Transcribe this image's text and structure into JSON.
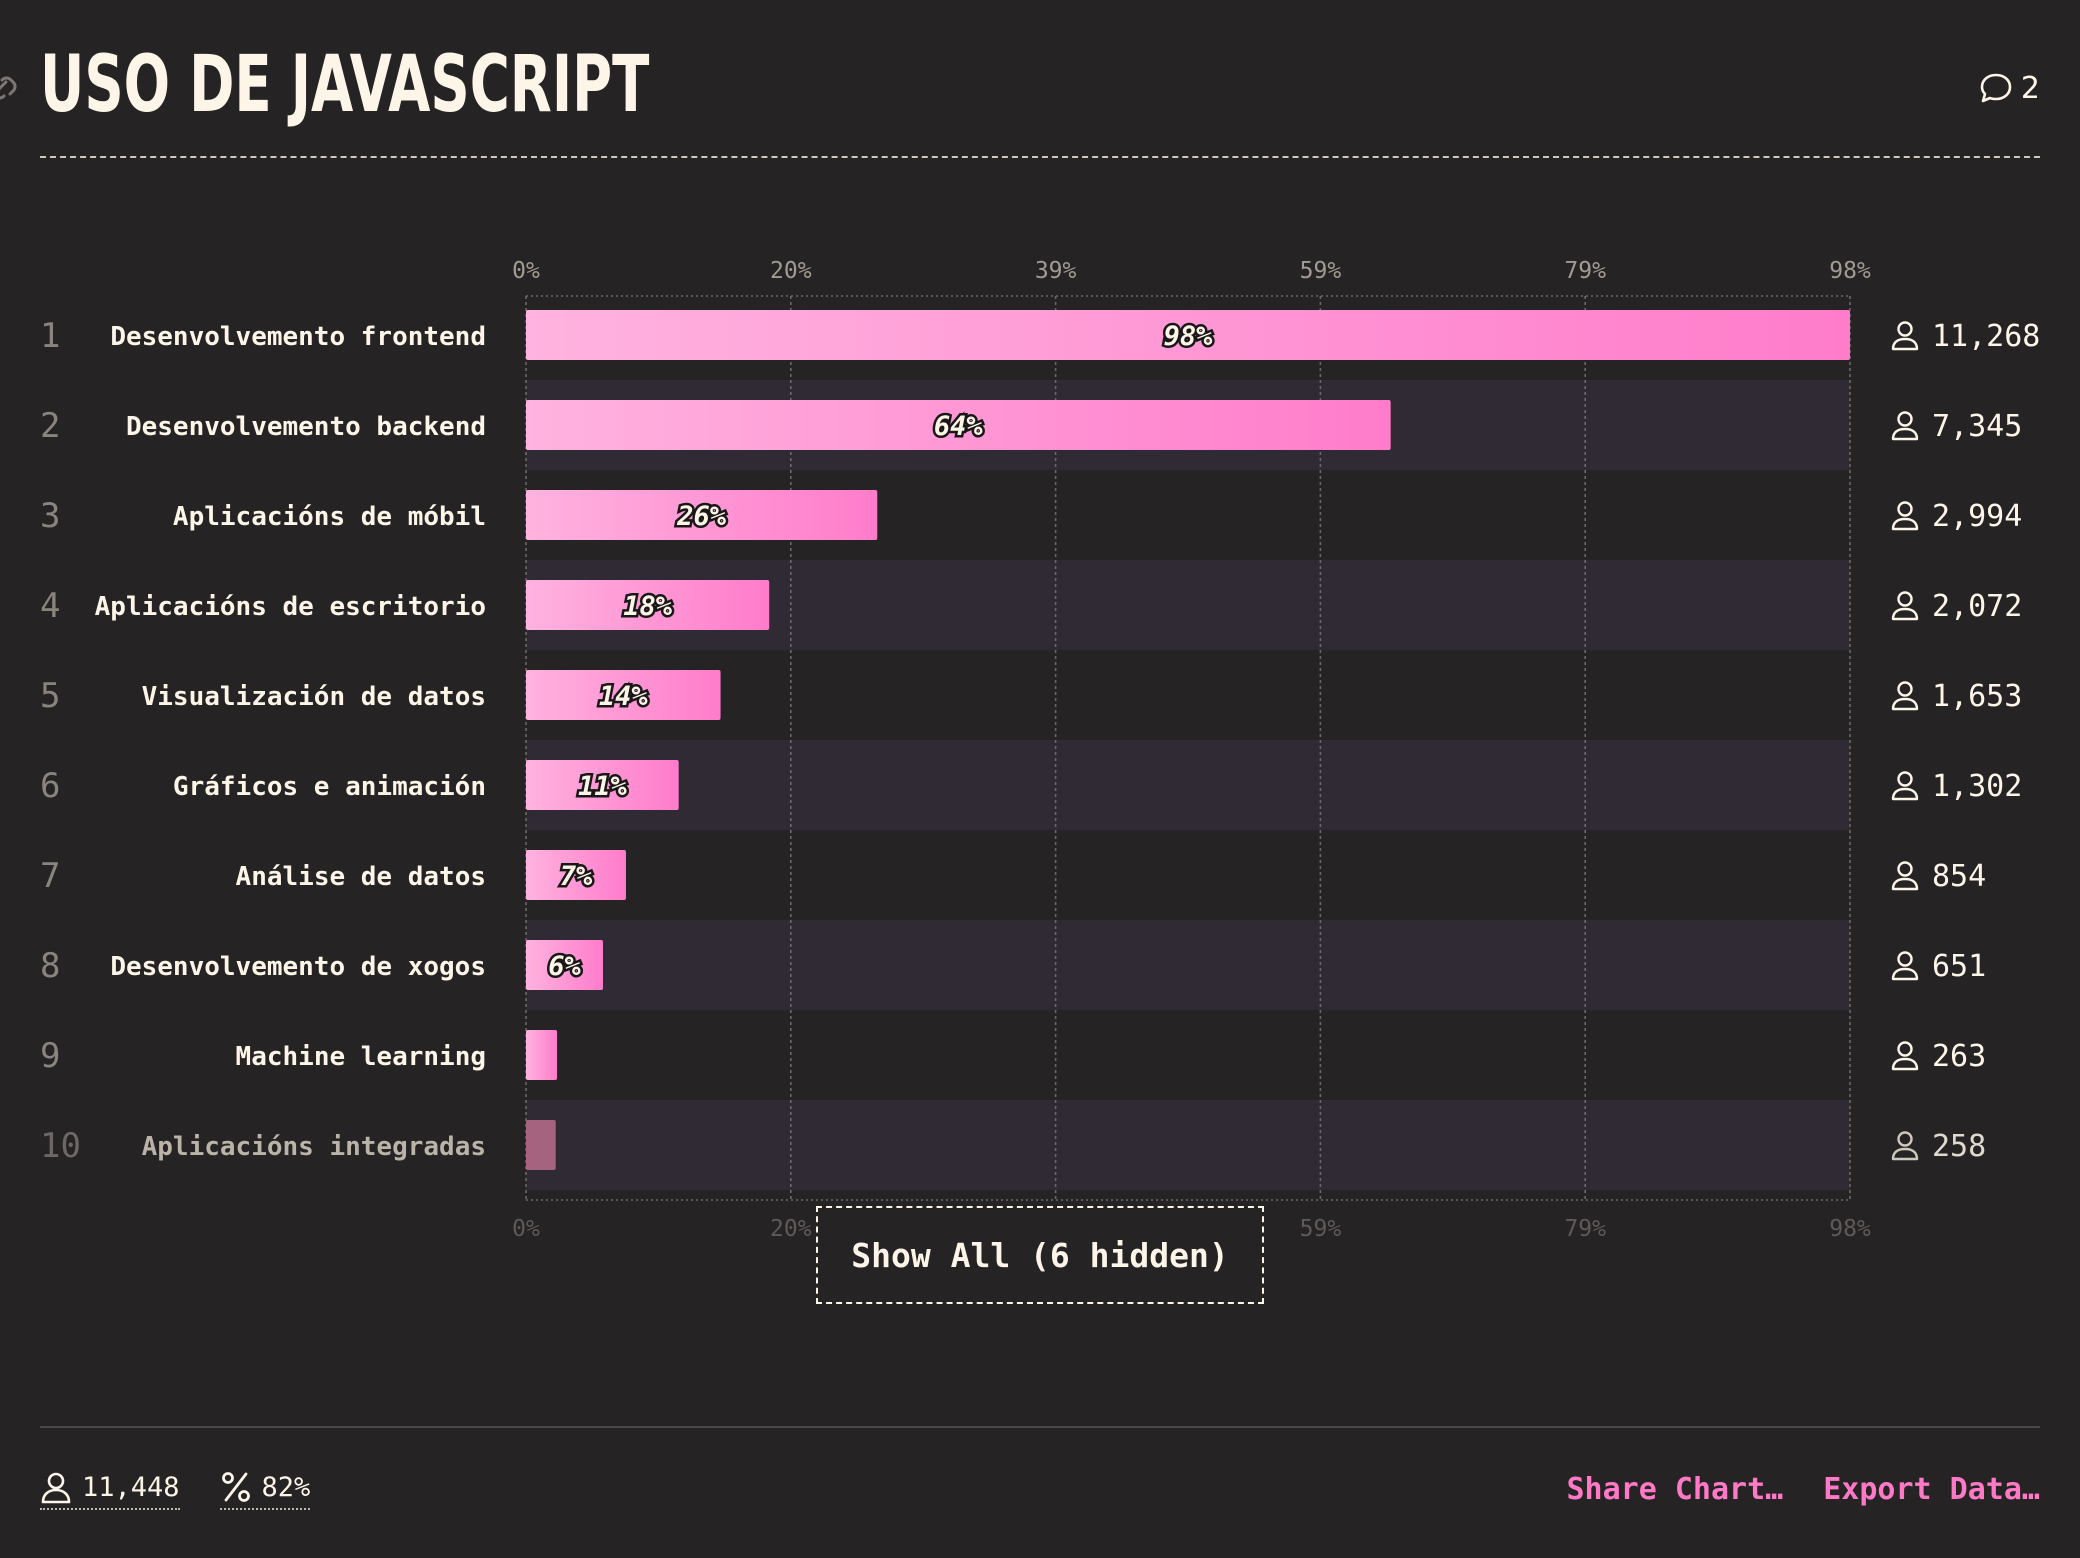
{
  "header": {
    "title": "USO DE JAVASCRIPT",
    "comments_count": "2"
  },
  "chart_data": {
    "type": "bar",
    "orientation": "horizontal",
    "axis_max_percent": 98,
    "xticks": [
      "0%",
      "20%",
      "39%",
      "59%",
      "79%",
      "98%"
    ],
    "rows": [
      {
        "rank": "1",
        "label": "Desenvolvemento frontend",
        "percent": 98,
        "percent_label": "98%",
        "count": "11,268"
      },
      {
        "rank": "2",
        "label": "Desenvolvemento backend",
        "percent": 64,
        "percent_label": "64%",
        "count": "7,345"
      },
      {
        "rank": "3",
        "label": "Aplicacións de móbil",
        "percent": 26,
        "percent_label": "26%",
        "count": "2,994"
      },
      {
        "rank": "4",
        "label": "Aplicacións de escritorio",
        "percent": 18,
        "percent_label": "18%",
        "count": "2,072"
      },
      {
        "rank": "5",
        "label": "Visualización de datos",
        "percent": 14.4,
        "percent_label": "14%",
        "count": "1,653"
      },
      {
        "rank": "6",
        "label": "Gráficos e animación",
        "percent": 11.3,
        "percent_label": "11%",
        "count": "1,302"
      },
      {
        "rank": "7",
        "label": "Análise de datos",
        "percent": 7.4,
        "percent_label": "7%",
        "count": "854"
      },
      {
        "rank": "8",
        "label": "Desenvolvemento de xogos",
        "percent": 5.7,
        "percent_label": "6%",
        "count": "651"
      },
      {
        "rank": "9",
        "label": "Machine learning",
        "percent": 2.3,
        "percent_label": "",
        "count": "263"
      },
      {
        "rank": "10",
        "label": "Aplicacións integradas",
        "percent": 2.2,
        "percent_label": "",
        "count": "258",
        "muted": true
      }
    ],
    "grid": true,
    "colors": {
      "bar_start": "#ffb3df",
      "bar_end": "#ff7ccb",
      "bar_muted": "#a6637f",
      "row_alt": "#2f2a33",
      "background": "#262324"
    }
  },
  "show_all": {
    "label": "Show All (6 hidden)"
  },
  "footer": {
    "respondents": "11,448",
    "percent": "82%",
    "share_label": "Share Chart…",
    "export_label": "Export Data…"
  }
}
